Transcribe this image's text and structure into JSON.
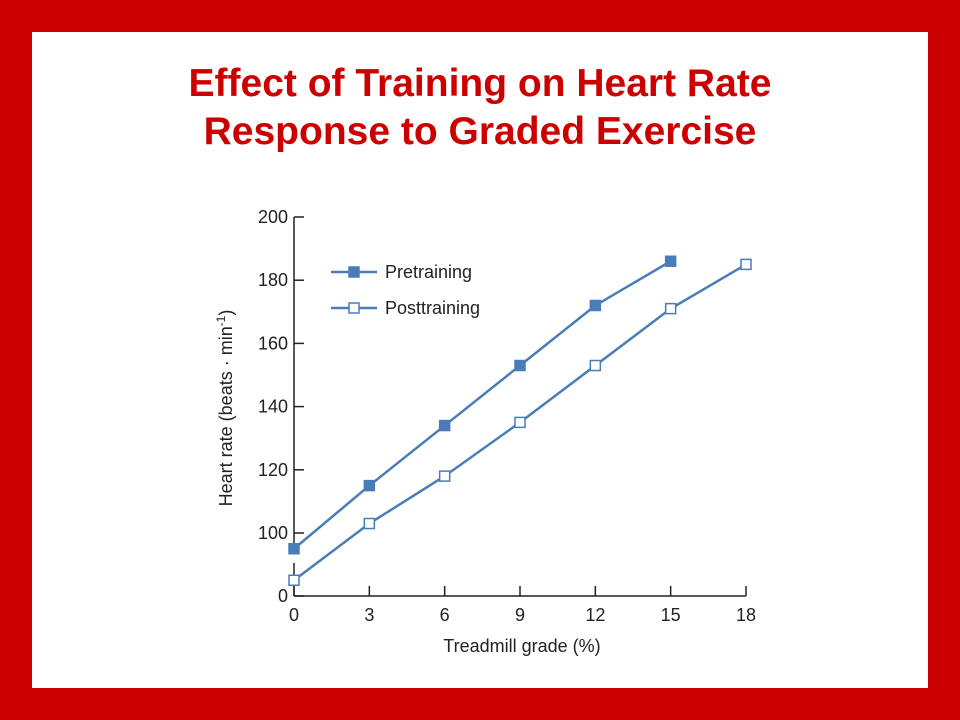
{
  "chart_data": {
    "type": "line",
    "title_lines": [
      "Effect of Training on Heart Rate",
      "Response to Graded Exercise"
    ],
    "xlabel": "Treadmill grade (%)",
    "ylabel_main": "Heart rate (beats · min",
    "ylabel_sup": "-1",
    "ylabel_close": ")",
    "x": [
      0,
      3,
      6,
      9,
      12,
      15,
      18
    ],
    "x_ticks": [
      "0",
      "3",
      "6",
      "9",
      "12",
      "15",
      "18"
    ],
    "y_ticks": [
      "0",
      "100",
      "120",
      "140",
      "160",
      "180",
      "200"
    ],
    "y_tick_values": [
      80,
      100,
      120,
      140,
      160,
      180,
      200
    ],
    "ylim": [
      80,
      200
    ],
    "xlim": [
      0,
      18
    ],
    "axis_break": "y-axis starts at 0 with a broken scale; lowest gridless tick labelled 0 sits at 80",
    "series": [
      {
        "name": "Pretraining",
        "marker": "filled-square",
        "values": [
          95,
          115,
          134,
          153,
          172,
          186,
          null
        ]
      },
      {
        "name": "Posttraining",
        "marker": "open-square",
        "values": [
          85,
          103,
          118,
          135,
          153,
          171,
          185
        ]
      }
    ],
    "colors": {
      "line": "#4a7db8",
      "marker_fill": "#4a7db8",
      "title": "#cc0000",
      "border": "#cc0000"
    },
    "legend": "top-left",
    "grid": false
  }
}
